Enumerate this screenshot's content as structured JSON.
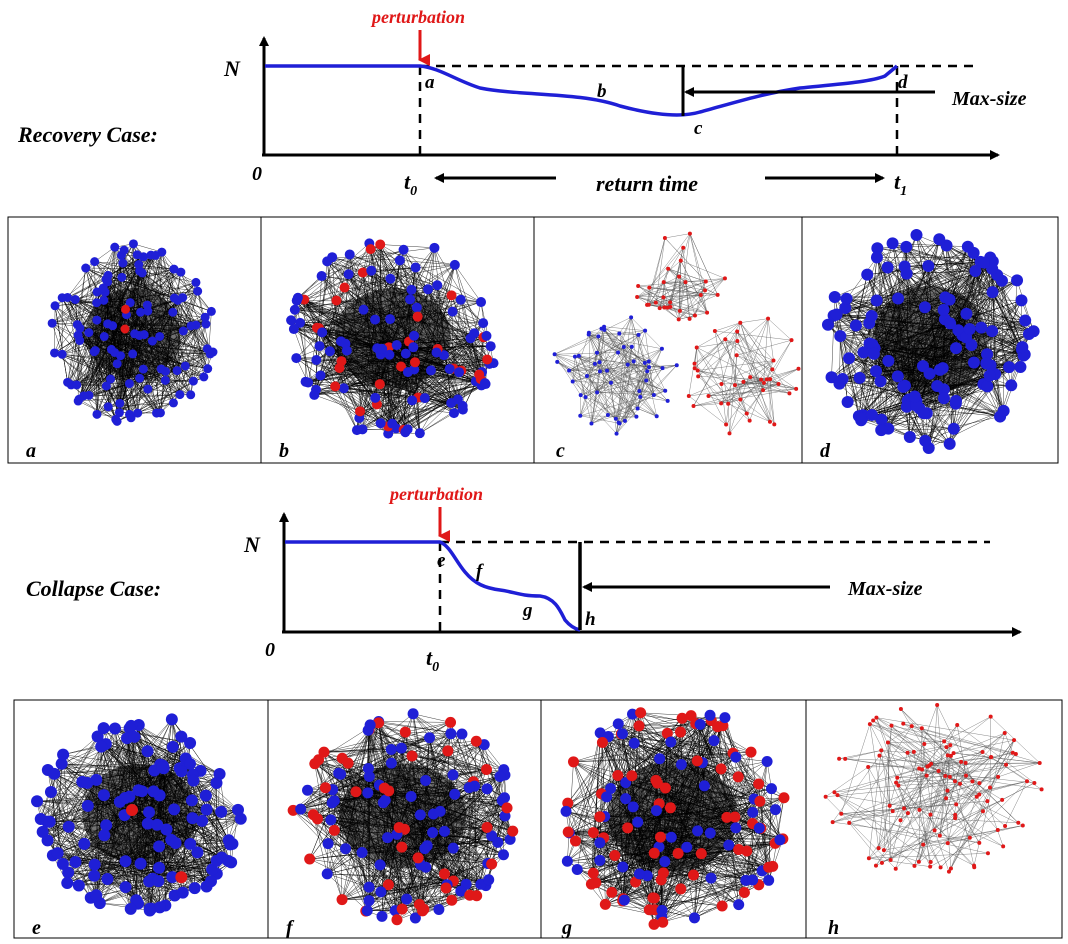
{
  "recovery": {
    "case_label": "Recovery Case:",
    "perturbation": "perturbation",
    "y_axis_label": "N",
    "origin_label": "0",
    "t0_label": "t",
    "t0_sub": "0",
    "t1_label": "t",
    "t1_sub": "1",
    "return_time": "return time",
    "max_size": "Max-size",
    "point_labels": [
      "a",
      "b",
      "c",
      "d"
    ]
  },
  "collapse": {
    "case_label": "Collapse Case:",
    "perturbation": "perturbation",
    "y_axis_label": "N",
    "origin_label": "0",
    "t0_label": "t",
    "t0_sub": "0",
    "max_size": "Max-size",
    "point_labels": [
      "e",
      "f",
      "g",
      "h"
    ]
  },
  "panels_row1": [
    "a",
    "b",
    "c",
    "d"
  ],
  "panels_row2": [
    "e",
    "f",
    "g",
    "h"
  ],
  "colors": {
    "curve": "#1f1fd6",
    "perturbation": "#e01818",
    "node_blue": "#1f1fd6",
    "node_red": "#e01818",
    "edge": "#000000"
  }
}
